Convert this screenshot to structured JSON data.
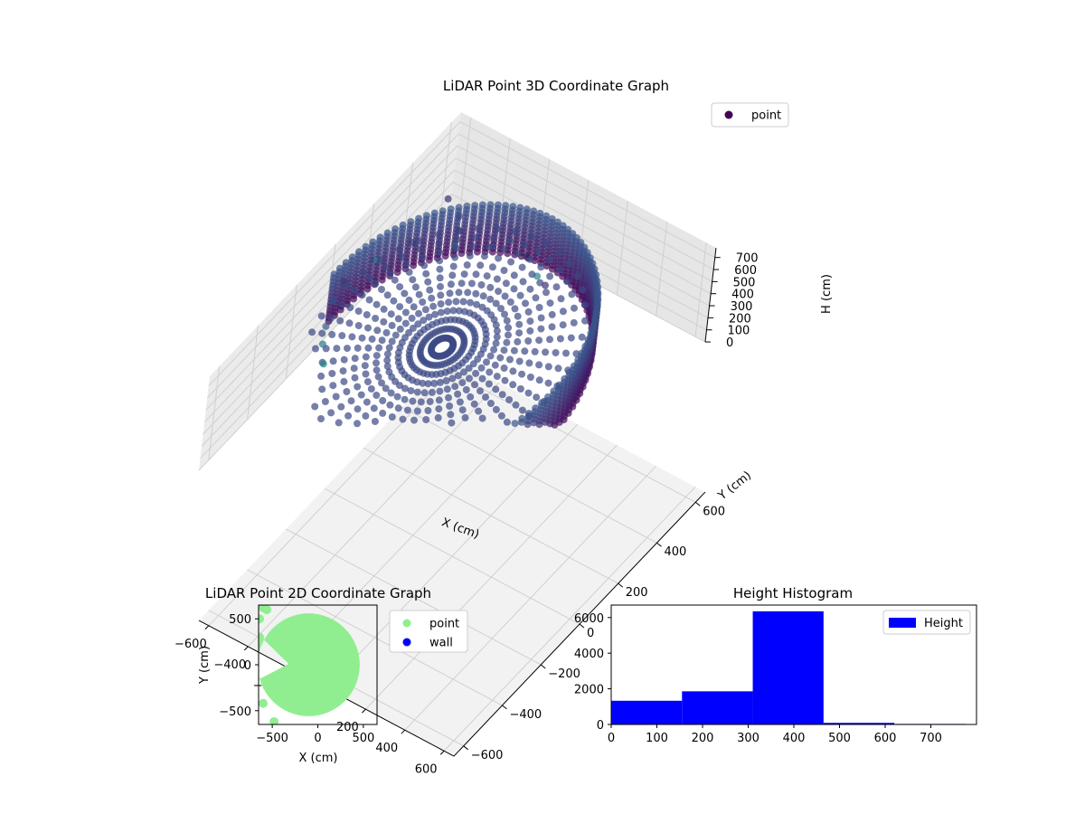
{
  "chart_data": [
    {
      "type": "scatter",
      "projection": "3d",
      "title": "LiDAR Point 3D Coordinate Graph",
      "xlabel": "X (cm)",
      "ylabel": "Y (cm)",
      "zlabel": "H (cm)",
      "xticks": [
        -600,
        -400,
        -200,
        0,
        200,
        400,
        600
      ],
      "yticks": [
        -600,
        -400,
        -200,
        0,
        200,
        400,
        600
      ],
      "zticks": [
        0,
        100,
        200,
        300,
        400,
        500,
        600,
        700
      ],
      "xlim": [
        -650,
        650
      ],
      "ylim": [
        -650,
        650
      ],
      "zlim": [
        0,
        780
      ],
      "z_axis_inverted": true,
      "grid": true,
      "colormap": "viridis",
      "legend": {
        "entries": [
          "point"
        ],
        "placement": "top-right"
      },
      "series": [
        {
          "name": "point",
          "color": "#440154",
          "point_sets": [
            {
              "desc": "room wall ring",
              "shape": "ring",
              "center": [
                -80,
                0
              ],
              "radius": 560,
              "arc_deg": [
                -120,
                180
              ],
              "h_range": [
                150,
                560
              ]
            },
            {
              "desc": "floor surface",
              "shape": "disk",
              "center": [
                -80,
                0
              ],
              "radius": 560,
              "h": 420
            },
            {
              "desc": "scattered outliers",
              "shape": "points",
              "points": [
                [
                  -640,
                  620,
                  120
                ],
                [
                  -560,
                  600,
                  80
                ],
                [
                  -520,
                  560,
                  60
                ],
                [
                  -200,
                  580,
                  90
                ],
                [
                  -120,
                  560,
                  30
                ],
                [
                  -60,
                  540,
                  40
                ],
                [
                  -300,
                  500,
                  220
                ],
                [
                  -420,
                  420,
                  260
                ],
                [
                  -560,
                  340,
                  300
                ],
                [
                  -620,
                  200,
                  340
                ],
                [
                  -640,
                  60,
                  380
                ],
                [
                  -600,
                  -40,
                  420
                ],
                [
                  -520,
                  -160,
                  480
                ],
                [
                  -460,
                  -240,
                  520
                ],
                [
                  -380,
                  -320,
                  560
                ]
              ]
            }
          ]
        }
      ]
    },
    {
      "type": "scatter",
      "title": "LiDAR Point 2D Coordinate Graph",
      "xlabel": "X (cm)",
      "ylabel": "Y (cm)",
      "xticks": [
        -500,
        0,
        500
      ],
      "yticks": [
        -500,
        0,
        500
      ],
      "xlim": [
        -650,
        650
      ],
      "ylim": [
        -650,
        650
      ],
      "legend": {
        "entries": [
          "point",
          "wall"
        ],
        "placement": "outside-right"
      },
      "series": [
        {
          "name": "point",
          "color": "#90ee90",
          "shape": "disk",
          "center": [
            -100,
            0
          ],
          "radius": 560,
          "missing_wedge": {
            "apex": [
              -320,
              10
            ],
            "x_left": -650,
            "y_range": [
              -160,
              330
            ]
          }
        },
        {
          "name": "wall",
          "color": "#0000ff",
          "points": []
        }
      ]
    },
    {
      "type": "bar",
      "title": "Height Histogram",
      "xticks": [
        0,
        100,
        200,
        300,
        400,
        500,
        600,
        700
      ],
      "yticks": [
        0,
        2000,
        4000,
        6000
      ],
      "xlim": [
        0,
        800
      ],
      "ylim": [
        0,
        6700
      ],
      "legend": {
        "entries": [
          "Height"
        ],
        "placement": "top-right"
      },
      "series": [
        {
          "name": "Height",
          "color": "#0000ff",
          "bin_edges": [
            0,
            155,
            310,
            465,
            620,
            775
          ],
          "values": [
            1330,
            1860,
            6350,
            90,
            30
          ]
        }
      ]
    }
  ]
}
